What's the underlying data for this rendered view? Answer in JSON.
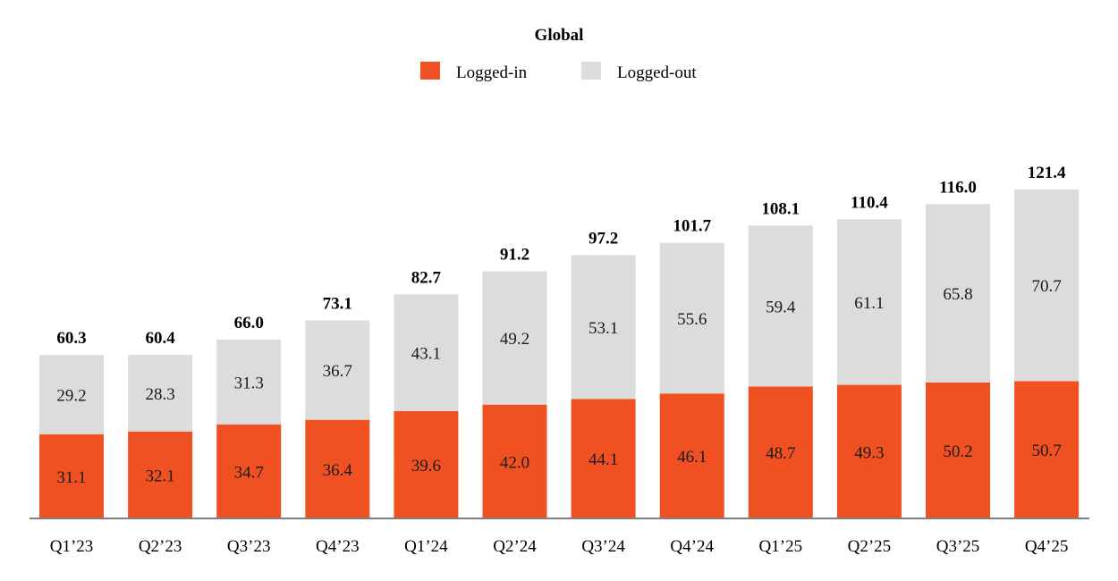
{
  "chart_data": {
    "type": "bar",
    "stacked": true,
    "title": "Global",
    "legend_position": "top-center",
    "grid": false,
    "ylim": [
      0,
      130
    ],
    "categories": [
      "Q1’23",
      "Q2’23",
      "Q3’23",
      "Q4’23",
      "Q1’24",
      "Q2’24",
      "Q3’24",
      "Q4’24",
      "Q1’25",
      "Q2’25",
      "Q3’25",
      "Q4’25"
    ],
    "series": [
      {
        "name": "Logged-in",
        "color": "#f05123",
        "values": [
          31.1,
          32.1,
          34.7,
          36.4,
          39.6,
          42.0,
          44.1,
          46.1,
          48.7,
          49.3,
          50.2,
          50.7
        ],
        "labels": [
          "31.1",
          "32.1",
          "34.7",
          "36.4",
          "39.6",
          "42.0",
          "44.1",
          "46.1",
          "48.7",
          "49.3",
          "50.2",
          "50.7"
        ]
      },
      {
        "name": "Logged-out",
        "color": "#dcdcdd",
        "values": [
          29.2,
          28.3,
          31.3,
          36.7,
          43.1,
          49.2,
          53.1,
          55.6,
          59.4,
          61.1,
          65.8,
          70.7
        ],
        "labels": [
          "29.2",
          "28.3",
          "31.3",
          "36.7",
          "43.1",
          "49.2",
          "53.1",
          "55.6",
          "59.4",
          "61.1",
          "65.8",
          "70.7"
        ]
      }
    ],
    "totals": [
      60.3,
      60.4,
      66.0,
      73.1,
      82.7,
      91.2,
      97.2,
      101.7,
      108.1,
      110.4,
      116.0,
      121.4
    ],
    "total_labels": [
      "60.3",
      "60.4",
      "66.0",
      "73.1",
      "82.7",
      "91.2",
      "97.2",
      "101.7",
      "108.1",
      "110.4",
      "116.0",
      "121.4"
    ]
  }
}
